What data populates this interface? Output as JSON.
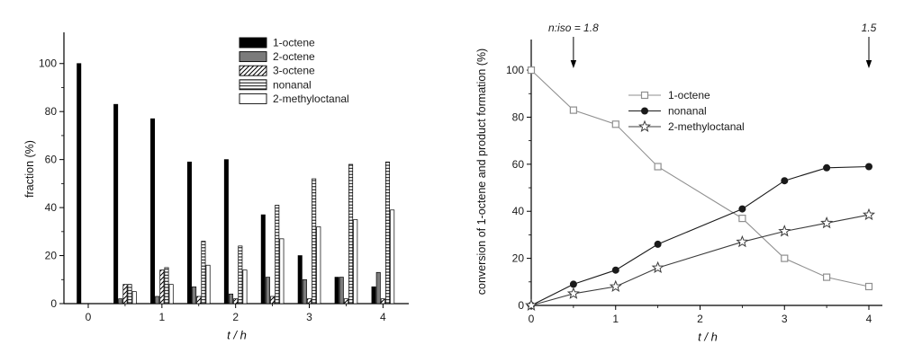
{
  "colors": {
    "background": "#ffffff",
    "axis": "#000000",
    "text": "#1a1a1a"
  },
  "chart_data": [
    {
      "type": "bar",
      "title": "",
      "ylabel": "fraction (%)",
      "xlabel": "t / h",
      "ylim": [
        0,
        100
      ],
      "yticks": [
        0,
        20,
        40,
        60,
        80,
        100
      ],
      "xticks": [
        0,
        1,
        2,
        3,
        4
      ],
      "grid": false,
      "legend_position": "top-right",
      "categories": [
        0,
        0.5,
        1,
        1.5,
        2,
        2.5,
        3,
        3.5,
        4
      ],
      "series": [
        {
          "name": "1-octene",
          "style": "solid-black",
          "color": "#000000",
          "values": [
            100,
            83,
            77,
            59,
            60,
            37,
            20,
            11,
            7
          ]
        },
        {
          "name": "2-octene",
          "style": "solid-gray",
          "color": "#7b7b7b",
          "values": [
            0,
            2,
            3,
            7,
            4,
            11,
            10,
            11,
            13
          ]
        },
        {
          "name": "3-octene",
          "style": "diagonal-hatch",
          "color": "#000000",
          "values": [
            0,
            8,
            14,
            3,
            2,
            3,
            2,
            2,
            2
          ]
        },
        {
          "name": "nonanal",
          "style": "horizontal-lines",
          "color": "#000000",
          "values": [
            0,
            8,
            15,
            26,
            24,
            41,
            52,
            58,
            59
          ]
        },
        {
          "name": "2-methyloctanal",
          "style": "white",
          "color": "#ffffff",
          "values": [
            0,
            5,
            8,
            16,
            14,
            27,
            32,
            35,
            39
          ]
        }
      ]
    },
    {
      "type": "line",
      "title": "",
      "ylabel": "conversion of 1-octene and product formation (%)",
      "xlabel": "t / h",
      "ylim": [
        0,
        100
      ],
      "yticks": [
        0,
        20,
        40,
        60,
        80,
        100
      ],
      "xticks": [
        0,
        1,
        2,
        3,
        4
      ],
      "grid": false,
      "legend_position": "top-center",
      "x": [
        0,
        0.5,
        1,
        1.5,
        2.5,
        3,
        3.5,
        4
      ],
      "series": [
        {
          "name": "1-octene",
          "marker": "open-square",
          "color": "#8f8f8f",
          "values": [
            100,
            83,
            77,
            59,
            37,
            20,
            12,
            8
          ]
        },
        {
          "name": "nonanal",
          "marker": "filled-circle",
          "color": "#1a1a1a",
          "values": [
            0,
            9,
            15,
            26,
            41,
            53,
            58.5,
            59
          ]
        },
        {
          "name": "2-methyloctanal",
          "marker": "open-star",
          "color": "#3c3c3c",
          "values": [
            0,
            5,
            8,
            16,
            27,
            31.5,
            35,
            38.5
          ]
        }
      ],
      "annotations": [
        {
          "text": "n:iso = 1.8",
          "x": 0.5
        },
        {
          "text": "1.5",
          "x": 4
        }
      ]
    }
  ]
}
